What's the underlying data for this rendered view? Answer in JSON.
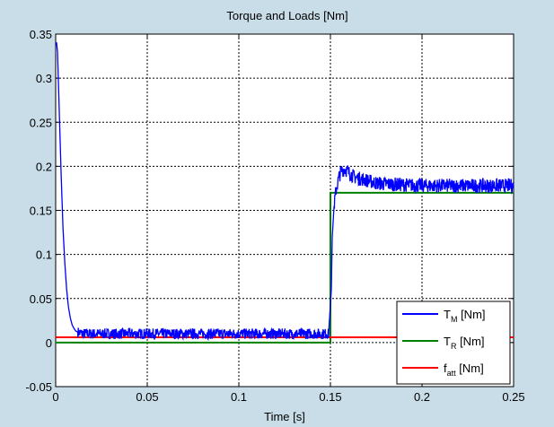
{
  "chart_data": {
    "type": "line",
    "title": "Torque and Loads [Nm]",
    "xlabel": "Time [s]",
    "ylabel": "",
    "xlim": [
      0,
      0.25
    ],
    "ylim": [
      -0.05,
      0.35
    ],
    "grid": true,
    "x_ticks": [
      0,
      0.05,
      0.1,
      0.15,
      0.2,
      0.25
    ],
    "x_tick_labels": [
      "0",
      "0.05",
      "0.1",
      "0.15",
      "0.2",
      "0.25"
    ],
    "y_ticks": [
      -0.05,
      0,
      0.05,
      0.1,
      0.15,
      0.2,
      0.25,
      0.3,
      0.35
    ],
    "y_tick_labels": [
      "-0.05",
      "0",
      "0.05",
      "0.1",
      "0.15",
      "0.2",
      "0.25",
      "0.3",
      "0.35"
    ],
    "legend_position": "bottom-right",
    "series": [
      {
        "name": "T_M [Nm]",
        "label_main": "T",
        "label_sub": "M",
        "label_unit": " [Nm]",
        "color": "#0000ff",
        "x": [
          0,
          0.0005,
          0.001,
          0.002,
          0.003,
          0.004,
          0.005,
          0.006,
          0.007,
          0.008,
          0.009,
          0.01,
          0.011,
          0.012,
          0.013,
          0.015,
          0.02,
          0.05,
          0.1,
          0.149,
          0.1505,
          0.151,
          0.152,
          0.153,
          0.154,
          0.155,
          0.156,
          0.158,
          0.16,
          0.163,
          0.166,
          0.17,
          0.175,
          0.18,
          0.19,
          0.2,
          0.22,
          0.25
        ],
        "y": [
          0.34,
          0.34,
          0.33,
          0.26,
          0.19,
          0.13,
          0.09,
          0.06,
          0.04,
          0.028,
          0.02,
          0.016,
          0.013,
          0.012,
          0.011,
          0.01,
          0.01,
          0.01,
          0.01,
          0.01,
          0.06,
          0.12,
          0.155,
          0.172,
          0.182,
          0.19,
          0.195,
          0.197,
          0.193,
          0.188,
          0.186,
          0.184,
          0.181,
          0.18,
          0.179,
          0.178,
          0.178,
          0.178
        ]
      },
      {
        "name": "T_R [Nm]",
        "label_main": "T",
        "label_sub": "R",
        "label_unit": " [Nm]",
        "color": "#008000",
        "x": [
          0,
          0.15,
          0.15,
          0.25
        ],
        "y": [
          0,
          0,
          0.17,
          0.17
        ]
      },
      {
        "name": "f_att [Nm]",
        "label_main": "f",
        "label_sub": "att",
        "label_unit": " [Nm]",
        "color": "#ff0000",
        "x": [
          0,
          0.25
        ],
        "y": [
          0.006,
          0.006
        ]
      }
    ]
  }
}
